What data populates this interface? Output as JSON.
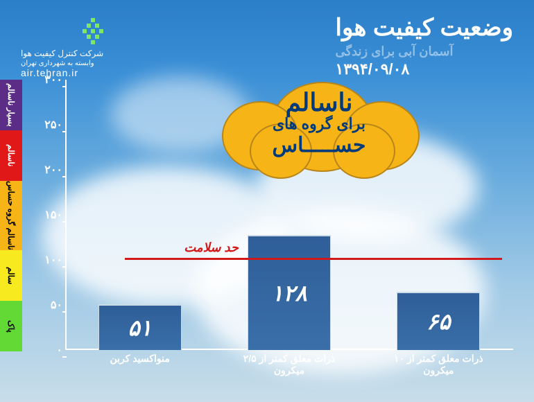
{
  "header": {
    "title": "وضعیت کیفیت هوا",
    "slogan": "آسمان آبی برای زندگی",
    "date": "۱۳۹۴/۰۹/۰۸",
    "org_line1": "شرکت کنترل کیفیت هوا",
    "org_line2": "وابسته به شهرداری تهران",
    "url": "air.tehran.ir"
  },
  "status": {
    "line1": "ناسالم",
    "line2": "برای گروه های",
    "line3": "حســـــاس",
    "text_color": "#003a7a",
    "bubble_color": "#f6b416"
  },
  "chart": {
    "type": "bar",
    "y_min": 0,
    "y_max": 300,
    "y_step": 50,
    "y_ticks": [
      "۰",
      "۵۰",
      "۱۰۰",
      "۱۵۰",
      "۲۰۰",
      "۲۵۰",
      "۳۰۰"
    ],
    "health_limit": {
      "value": 100,
      "label": "حد سلامت",
      "color": "#d11919"
    },
    "bar_color": "#2f5e98",
    "bar_border": "#cddbe8",
    "bars": [
      {
        "label": "ذرات معلق کمتر از ۱۰ میکرون",
        "value": 65,
        "value_fa": "۶۵"
      },
      {
        "label": "ذرات معلق کمتر از ۲/۵ میکرون",
        "value": 128,
        "value_fa": "۱۲۸"
      },
      {
        "label": "منواکسید کربن",
        "value": 51,
        "value_fa": "۵۱"
      }
    ]
  },
  "scale": [
    {
      "label": "بسیار ناسالم",
      "color": "#5b2d86"
    },
    {
      "label": "ناسالم",
      "color": "#e01818"
    },
    {
      "label": "ناسالم گروه حساس",
      "color": "#f6b416"
    },
    {
      "label": "سالم",
      "color": "#f7ea1f"
    },
    {
      "label": "پاک",
      "color": "#63d935"
    }
  ],
  "colors": {
    "axis": "#ffffff"
  }
}
